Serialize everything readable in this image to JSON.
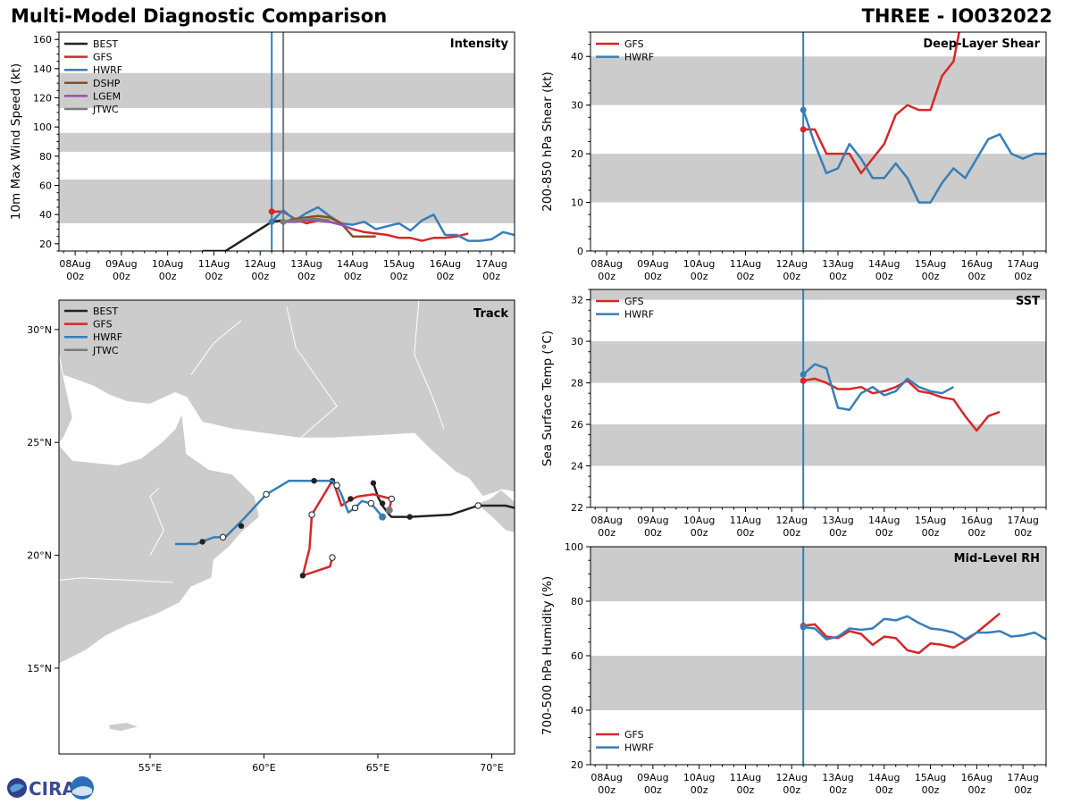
{
  "header": {
    "title": "Multi-Model Diagnostic Comparison",
    "storm": "THREE - IO032022"
  },
  "logo_text": "CIRA",
  "colors": {
    "BEST": "#222222",
    "GFS": "#d62728",
    "HWRF": "#377eb8",
    "DSHP": "#8c4f1f",
    "LGEM": "#9b4fa8",
    "JTWC": "#7b7b7b",
    "band": "#cccccc",
    "land": "#cccccc",
    "init_line": "#377eb8"
  },
  "time_axis": {
    "labels": [
      "08Aug\n00z",
      "09Aug\n00z",
      "10Aug\n00z",
      "11Aug\n00z",
      "12Aug\n00z",
      "13Aug\n00z",
      "14Aug\n00z",
      "15Aug\n00z",
      "16Aug\n00z",
      "17Aug\n00z"
    ],
    "xlim": [
      -0.35,
      9.5
    ],
    "init_time": 4.25
  },
  "chart_data": [
    {
      "id": "intensity",
      "type": "line",
      "title": "Intensity",
      "ylabel": "10m Max Wind Speed (kt)",
      "ylim": [
        15,
        165
      ],
      "yticks": [
        20,
        40,
        60,
        80,
        100,
        120,
        140,
        160
      ],
      "bands": [
        [
          34,
          64
        ],
        [
          83,
          96
        ],
        [
          113,
          137
        ]
      ],
      "legend": [
        "BEST",
        "GFS",
        "HWRF",
        "DSHP",
        "LGEM",
        "JTWC"
      ],
      "vlines": [
        {
          "x": 4.25,
          "color": "HWRF"
        },
        {
          "x": 4.5,
          "color": "JTWC"
        }
      ],
      "series": [
        {
          "name": "BEST",
          "x": [
            2.75,
            3.25,
            4.25,
            4.5
          ],
          "y": [
            15,
            15,
            35,
            36
          ]
        },
        {
          "name": "GFS",
          "x": [
            4.25,
            4.5,
            4.75,
            5.0,
            5.25,
            5.5,
            5.75,
            6.0,
            6.25,
            6.5,
            6.75,
            7.0,
            7.25,
            7.5,
            7.75,
            8.0,
            8.25,
            8.5
          ],
          "y": [
            42,
            42,
            37,
            34,
            36,
            35,
            33,
            30,
            28,
            27,
            26,
            24,
            24,
            22,
            24,
            24,
            25,
            27
          ],
          "points": [
            [
              4.25,
              42
            ]
          ]
        },
        {
          "name": "HWRF",
          "x": [
            4.25,
            4.5,
            4.75,
            5.0,
            5.25,
            5.5,
            5.75,
            6.0,
            6.25,
            6.5,
            6.75,
            7.0,
            7.25,
            7.5,
            7.75,
            8.0,
            8.25,
            8.5,
            8.75,
            9.0,
            9.25,
            9.5
          ],
          "y": [
            35,
            43,
            36,
            41,
            45,
            39,
            34,
            33,
            35,
            30,
            32,
            34,
            29,
            36,
            40,
            26,
            26,
            22,
            22,
            23,
            28,
            26
          ],
          "points": [
            [
              4.25,
              35
            ]
          ]
        },
        {
          "name": "DSHP",
          "x": [
            4.5,
            4.75,
            5.0,
            5.25,
            5.5,
            5.75,
            6.0,
            6.25,
            6.5
          ],
          "y": [
            35,
            37,
            38,
            39,
            38,
            34,
            25,
            25,
            25
          ]
        },
        {
          "name": "LGEM",
          "x": [
            4.5,
            4.75,
            5.0,
            5.25,
            5.5,
            5.75,
            6.0
          ],
          "y": [
            35,
            35,
            36,
            36,
            35,
            33,
            30
          ]
        },
        {
          "name": "JTWC",
          "x": [
            4.5,
            4.75,
            5.0,
            5.25,
            5.5
          ],
          "y": [
            35,
            36,
            37,
            37,
            36
          ],
          "points": [
            [
              4.5,
              35
            ]
          ]
        }
      ]
    },
    {
      "id": "shear",
      "type": "line",
      "title": "Deep-Layer Shear",
      "ylabel": "200-850 hPa Shear (kt)",
      "ylim": [
        0,
        45
      ],
      "yticks": [
        0,
        10,
        20,
        30,
        40
      ],
      "bands": [
        [
          10,
          20
        ],
        [
          30,
          40
        ]
      ],
      "legend": [
        "GFS",
        "HWRF"
      ],
      "vlines": [
        {
          "x": 4.25,
          "color": "init_line"
        }
      ],
      "series": [
        {
          "name": "GFS",
          "x": [
            4.25,
            4.5,
            4.75,
            5.0,
            5.25,
            5.5,
            5.75,
            6.0,
            6.25,
            6.5,
            6.75,
            7.0,
            7.25,
            7.5,
            7.62
          ],
          "y": [
            25,
            25,
            20,
            20,
            20,
            16,
            19,
            22,
            28,
            30,
            29,
            29,
            36,
            39,
            45
          ],
          "points": [
            [
              4.25,
              25
            ]
          ]
        },
        {
          "name": "HWRF",
          "x": [
            4.25,
            4.5,
            4.75,
            5.0,
            5.25,
            5.5,
            5.75,
            6.0,
            6.25,
            6.5,
            6.75,
            7.0,
            7.25,
            7.5,
            7.75,
            8.0,
            8.25,
            8.5,
            8.75,
            9.0,
            9.25,
            9.5
          ],
          "y": [
            29,
            22,
            16,
            17,
            22,
            19,
            15,
            15,
            18,
            15,
            10,
            10,
            14,
            17,
            15,
            19,
            23,
            24,
            20,
            19,
            20,
            20
          ],
          "points": [
            [
              4.25,
              29
            ]
          ]
        }
      ]
    },
    {
      "id": "sst",
      "type": "line",
      "title": "SST",
      "ylabel": "Sea Surface Temp (°C)",
      "ylim": [
        22,
        32.5
      ],
      "yticks": [
        22,
        24,
        26,
        28,
        30,
        32
      ],
      "bands": [
        [
          24,
          26
        ],
        [
          28,
          30
        ],
        [
          32,
          32.5
        ]
      ],
      "legend": [
        "GFS",
        "HWRF"
      ],
      "vlines": [
        {
          "x": 4.25,
          "color": "init_line"
        }
      ],
      "series": [
        {
          "name": "GFS",
          "x": [
            4.25,
            4.5,
            4.75,
            5.0,
            5.25,
            5.5,
            5.75,
            6.0,
            6.25,
            6.5,
            6.75,
            7.0,
            7.25,
            7.5,
            7.75,
            8.0,
            8.25,
            8.5
          ],
          "y": [
            28.1,
            28.2,
            28.0,
            27.7,
            27.7,
            27.8,
            27.5,
            27.6,
            27.8,
            28.1,
            27.6,
            27.5,
            27.3,
            27.2,
            26.4,
            25.7,
            26.4,
            26.6
          ],
          "points": [
            [
              4.25,
              28.1
            ]
          ]
        },
        {
          "name": "HWRF",
          "x": [
            4.25,
            4.5,
            4.75,
            5.0,
            5.25,
            5.5,
            5.75,
            6.0,
            6.25,
            6.5,
            6.75,
            7.0,
            7.25,
            7.5
          ],
          "y": [
            28.4,
            28.9,
            28.7,
            26.8,
            26.7,
            27.5,
            27.8,
            27.4,
            27.6,
            28.2,
            27.8,
            27.6,
            27.5,
            27.8
          ],
          "points": [
            [
              4.25,
              28.4
            ]
          ]
        }
      ]
    },
    {
      "id": "rh",
      "type": "line",
      "title": "Mid-Level RH",
      "ylabel": "700-500 hPa Humidity (%)",
      "ylim": [
        20,
        100
      ],
      "yticks": [
        20,
        40,
        60,
        80,
        100
      ],
      "bands": [
        [
          40,
          60
        ],
        [
          80,
          100
        ]
      ],
      "legend": [
        "GFS",
        "HWRF"
      ],
      "vlines": [
        {
          "x": 4.25,
          "color": "init_line"
        }
      ],
      "series": [
        {
          "name": "GFS",
          "x": [
            4.25,
            4.5,
            4.75,
            5.0,
            5.25,
            5.5,
            5.75,
            6.0,
            6.25,
            6.5,
            6.75,
            7.0,
            7.25,
            7.5,
            7.75,
            8.0,
            8.25,
            8.5
          ],
          "y": [
            71,
            71.5,
            67,
            66.5,
            69,
            68,
            64,
            67,
            66.5,
            62,
            61,
            64.5,
            64,
            63,
            65.5,
            68.5,
            72,
            75.5
          ],
          "points": [
            [
              4.25,
              71
            ]
          ]
        },
        {
          "name": "HWRF",
          "x": [
            4.25,
            4.5,
            4.75,
            5.0,
            5.25,
            5.5,
            5.75,
            6.0,
            6.25,
            6.5,
            6.75,
            7.0,
            7.25,
            7.5,
            7.75,
            8.0,
            8.25,
            8.5,
            8.75,
            9.0,
            9.25,
            9.5
          ],
          "y": [
            70.5,
            70,
            66,
            67,
            70,
            69.5,
            70,
            73.5,
            73,
            74.5,
            72,
            70,
            69.5,
            68.5,
            66,
            68.5,
            68.5,
            69,
            67,
            67.5,
            68.5,
            66
          ],
          "points": [
            [
              4.25,
              70.5
            ]
          ]
        }
      ]
    },
    {
      "id": "track",
      "type": "scatter",
      "title": "Track",
      "xlim": [
        51,
        71
      ],
      "ylim": [
        11.2,
        31.3
      ],
      "xticks": [
        {
          "v": 55,
          "label": "55°E"
        },
        {
          "v": 60,
          "label": "60°E"
        },
        {
          "v": 65,
          "label": "65°E"
        },
        {
          "v": 70,
          "label": "70°E"
        }
      ],
      "yticks": [
        {
          "v": 15,
          "label": "15°N"
        },
        {
          "v": 20,
          "label": "20°N"
        },
        {
          "v": 25,
          "label": "25°N"
        },
        {
          "v": 30,
          "label": "30°N"
        }
      ],
      "legend": [
        "BEST",
        "GFS",
        "HWRF",
        "JTWC"
      ],
      "series": [
        {
          "name": "BEST",
          "lon": [
            71,
            70.6,
            69.4,
            68.2,
            66.4,
            65.6,
            65.5,
            65.2,
            65.0,
            64.8
          ],
          "lat": [
            22.1,
            22.2,
            22.2,
            21.8,
            21.7,
            21.7,
            21.8,
            22.2,
            22.6,
            23.2
          ],
          "open": [
            [
              69.4,
              22.2
            ]
          ],
          "filled": [
            [
              66.4,
              21.7
            ],
            [
              65.2,
              22.3
            ],
            [
              64.8,
              23.2
            ]
          ]
        },
        {
          "name": "GFS",
          "lon": [
            65.5,
            65.6,
            64.8,
            64.1,
            63.7,
            63.4,
            63.2,
            63.1,
            63.0,
            62.4,
            62.1,
            62.0,
            61.7,
            62.9,
            63.0
          ],
          "lat": [
            22.0,
            22.5,
            22.7,
            22.6,
            22.4,
            22.2,
            22.8,
            23.1,
            23.3,
            22.3,
            21.8,
            20.3,
            19.1,
            19.5,
            19.9
          ],
          "open": [
            [
              65.6,
              22.5
            ],
            [
              62.1,
              21.8
            ],
            [
              63.0,
              19.9
            ]
          ],
          "filled": [
            [
              61.7,
              19.1
            ],
            [
              63.0,
              23.3
            ],
            [
              63.8,
              22.5
            ]
          ]
        },
        {
          "name": "HWRF",
          "lon": [
            65.2,
            64.7,
            64.3,
            64.0,
            63.7,
            63.4,
            63.2,
            63.0,
            62.2,
            61.1,
            60.1,
            59.0,
            58.3,
            57.8,
            57.0,
            56.1
          ],
          "lat": [
            21.7,
            22.3,
            22.4,
            22.1,
            21.9,
            22.7,
            23.1,
            23.3,
            23.3,
            23.3,
            22.7,
            21.5,
            20.8,
            20.8,
            20.5,
            20.5
          ],
          "open": [
            [
              64.7,
              22.3
            ],
            [
              64.0,
              22.1
            ],
            [
              63.2,
              23.1
            ],
            [
              60.1,
              22.7
            ],
            [
              58.2,
              20.8
            ]
          ],
          "filled": [
            [
              59.0,
              21.3
            ],
            [
              57.3,
              20.6
            ],
            [
              62.2,
              23.3
            ]
          ],
          "end_marker": [
            65.2,
            21.7
          ]
        },
        {
          "name": "JTWC",
          "lon": [
            65.5
          ],
          "lat": [
            22.0
          ],
          "open": [],
          "filled": [],
          "end_marker": [
            65.5,
            22.0
          ]
        }
      ]
    }
  ]
}
